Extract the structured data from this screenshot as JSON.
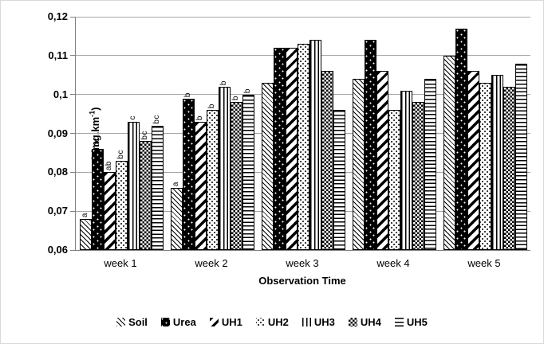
{
  "figure": {
    "background": "#ffffff",
    "border_color": "#d9d9d9"
  },
  "colors": {
    "gridline": "#a6a6a6",
    "axis_line": "#808080",
    "text": "#000000",
    "bar_fill_foreground": "#000000",
    "bar_fill_background": "#ffffff"
  },
  "chart_data": {
    "type": "bar",
    "title": "",
    "xlabel": "Observation Time",
    "ylabel": "N-Total (mg.km-1)",
    "ylabel_parts": {
      "prefix": "N-Total (mg.km",
      "sup": "-1",
      "suffix": ")"
    },
    "categories": [
      "week 1",
      "week 2",
      "week 3",
      "week 4",
      "week 5"
    ],
    "y_ticks": [
      "0,12",
      "0,11",
      "0,1",
      "0,09",
      "0,08",
      "0,07",
      "0,06"
    ],
    "ylim": [
      0.06,
      0.12
    ],
    "grid": "horizontal-gridlines-on",
    "legend_position": "bottom",
    "decimal_separator": ",",
    "series": [
      {
        "name": "Soil",
        "pattern": "soil",
        "values": [
          0.068,
          0.076,
          0.103,
          0.104,
          0.11
        ],
        "annotations": [
          "a",
          "a",
          "",
          "",
          ""
        ]
      },
      {
        "name": "Urea",
        "pattern": "urea",
        "values": [
          0.086,
          0.099,
          0.112,
          0.114,
          0.117
        ],
        "annotations": [
          "bc",
          "b",
          "",
          "",
          ""
        ]
      },
      {
        "name": "UH1",
        "pattern": "uh1",
        "values": [
          0.08,
          0.093,
          0.112,
          0.106,
          0.106
        ],
        "annotations": [
          "ab",
          "b",
          "",
          "",
          ""
        ]
      },
      {
        "name": "UH2",
        "pattern": "uh2",
        "values": [
          0.083,
          0.096,
          0.113,
          0.096,
          0.103
        ],
        "annotations": [
          "bc",
          "b",
          "",
          "",
          ""
        ]
      },
      {
        "name": "UH3",
        "pattern": "uh3",
        "values": [
          0.093,
          0.102,
          0.114,
          0.101,
          0.105
        ],
        "annotations": [
          "c",
          "b",
          "",
          "",
          ""
        ]
      },
      {
        "name": "UH4",
        "pattern": "uh4",
        "values": [
          0.088,
          0.098,
          0.106,
          0.098,
          0.102
        ],
        "annotations": [
          "bc",
          "b",
          "",
          "",
          ""
        ]
      },
      {
        "name": "UH5",
        "pattern": "uh5",
        "values": [
          0.092,
          0.1,
          0.096,
          0.104,
          0.108
        ],
        "annotations": [
          "bc",
          "b",
          "",
          "",
          ""
        ]
      }
    ]
  }
}
